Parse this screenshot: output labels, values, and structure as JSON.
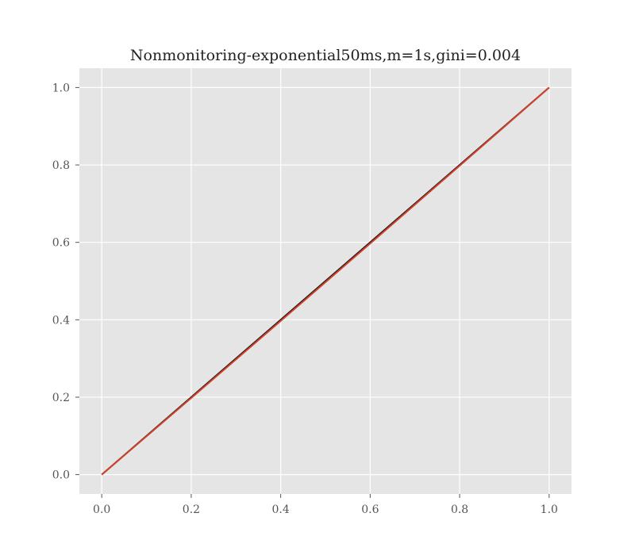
{
  "chart_data": {
    "type": "line",
    "title": "Nonmonitoring-exponential50ms,m=1s,gini=0.004",
    "xlabel": "",
    "ylabel": "",
    "xlim": [
      -0.05,
      1.05
    ],
    "ylim": [
      -0.05,
      1.05
    ],
    "xticks": [
      "0.0",
      "0.2",
      "0.4",
      "0.6",
      "0.8",
      "1.0"
    ],
    "yticks": [
      "0.0",
      "0.2",
      "0.4",
      "0.6",
      "0.8",
      "1.0"
    ],
    "grid": true,
    "series": [
      {
        "x": [
          0,
          1
        ],
        "y": [
          0,
          1
        ],
        "color": "#1a1a1a"
      },
      {
        "x": [
          0,
          0.2,
          0.4,
          0.6,
          0.8,
          1.0
        ],
        "y": [
          0,
          0.198,
          0.397,
          0.597,
          0.798,
          1.0
        ],
        "color": "#d2402a"
      }
    ],
    "colors": {
      "plot_background": "#e5e5e5",
      "grid": "#ffffff"
    }
  }
}
